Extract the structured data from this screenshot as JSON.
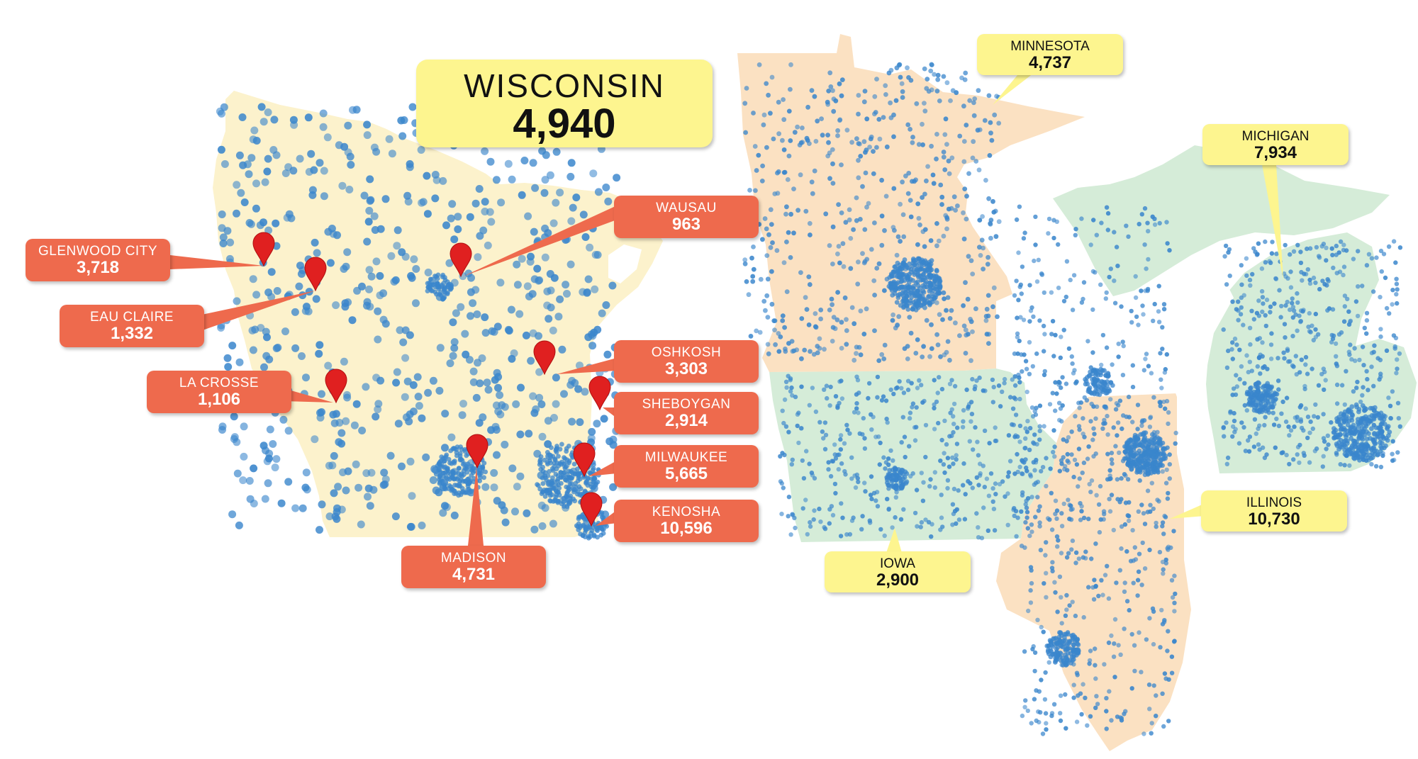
{
  "headline": {
    "name": "WISCONSIN",
    "value": "4,940"
  },
  "states": [
    {
      "id": "minnesota",
      "name": "MINNESOTA",
      "value": "4,737"
    },
    {
      "id": "michigan",
      "name": "MICHIGAN",
      "value": "7,934"
    },
    {
      "id": "illinois",
      "name": "ILLINOIS",
      "value": "10,730"
    },
    {
      "id": "iowa",
      "name": "IOWA",
      "value": "2,900"
    }
  ],
  "cities": [
    {
      "id": "glenwood-city",
      "name": "GLENWOOD CITY",
      "value": "3,718"
    },
    {
      "id": "eau-claire",
      "name": "EAU CLAIRE",
      "value": "1,332"
    },
    {
      "id": "la-crosse",
      "name": "LA CROSSE",
      "value": "1,106"
    },
    {
      "id": "wausau",
      "name": "WAUSAU",
      "value": "963"
    },
    {
      "id": "oshkosh",
      "name": "OSHKOSH",
      "value": "3,303"
    },
    {
      "id": "sheboygan",
      "name": "SHEBOYGAN",
      "value": "2,914"
    },
    {
      "id": "milwaukee",
      "name": "MILWAUKEE",
      "value": "5,665"
    },
    {
      "id": "kenosha",
      "name": "KENOSHA",
      "value": "10,596"
    },
    {
      "id": "madison",
      "name": "MADISON",
      "value": "4,731"
    }
  ],
  "colors": {
    "wisconsin": "#fcf2cc",
    "minnesota_illinois": "#fbe1c2",
    "iowa_michigan": "#d5ecd8",
    "dots": "#3a86cc",
    "city_callout": "#ee6a4d",
    "state_callout": "#fdf58f",
    "pin": "#e02020"
  },
  "icons": {
    "location": "map-pin-icon"
  }
}
